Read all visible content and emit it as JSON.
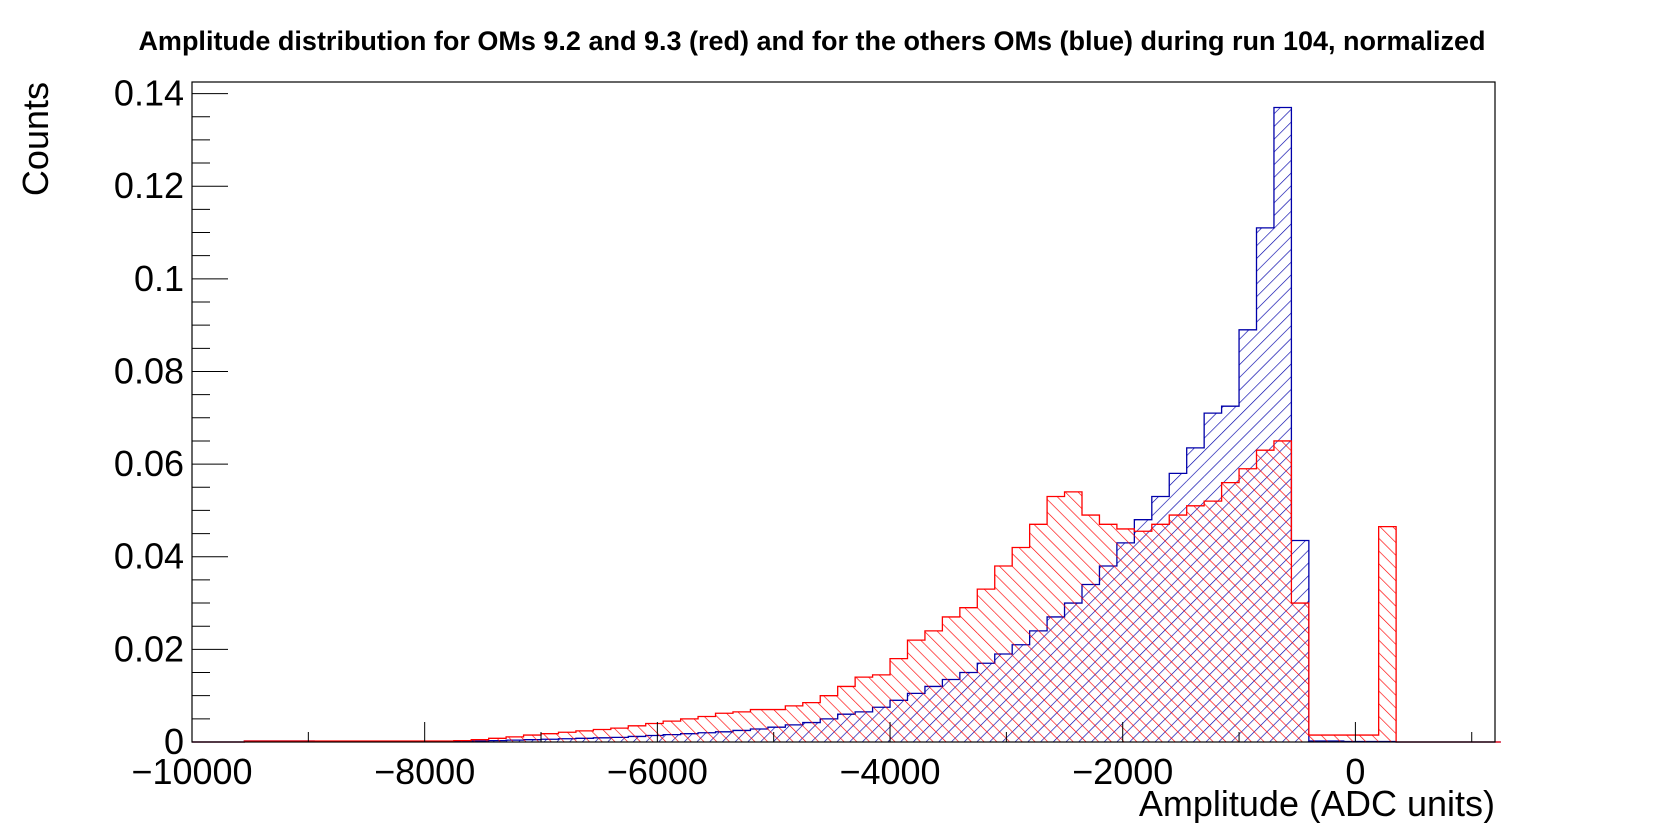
{
  "chart_data": {
    "type": "histogram",
    "title": "Amplitude distribution for OMs 9.2 and 9.3 (red) and for the others OMs (blue) during run 104, normalized",
    "xlabel": "Amplitude (ADC units)",
    "ylabel": "Counts",
    "xlim": [
      -10000,
      1200
    ],
    "ylim": [
      0,
      0.1425
    ],
    "bin_width": 150,
    "bin_start": -10000,
    "x_ticks": [
      -10000,
      -8000,
      -6000,
      -4000,
      -2000,
      0
    ],
    "x_tick_labels": [
      "−10000",
      "−8000",
      "−6000",
      "−4000",
      "−2000",
      "0"
    ],
    "y_ticks": [
      0,
      0.02,
      0.04,
      0.06,
      0.08,
      0.1,
      0.12,
      0.14
    ],
    "y_tick_labels": [
      "0",
      "0.02",
      "0.04",
      "0.06",
      "0.08",
      "0.1",
      "0.12",
      "0.14"
    ],
    "grid": false,
    "series": [
      {
        "color": "#0000aa",
        "values": [
          0,
          0,
          0,
          0.0002,
          0.0002,
          0.0002,
          0.0002,
          0.0001,
          0.0001,
          0.0001,
          0.0001,
          0.0001,
          0.0001,
          0.0001,
          0.0001,
          0.0001,
          0.0002,
          0.0003,
          0.0004,
          0.0005,
          0.0006,
          0.0007,
          0.0008,
          0.0009,
          0.001,
          0.0012,
          0.0014,
          0.0016,
          0.0018,
          0.002,
          0.0022,
          0.0025,
          0.0028,
          0.0032,
          0.0037,
          0.0042,
          0.005,
          0.006,
          0.0065,
          0.0075,
          0.009,
          0.0105,
          0.012,
          0.0135,
          0.015,
          0.017,
          0.019,
          0.021,
          0.024,
          0.027,
          0.03,
          0.034,
          0.038,
          0.043,
          0.048,
          0.053,
          0.058,
          0.0635,
          0.071,
          0.0725,
          0.089,
          0.111,
          0.137,
          0.0435,
          0.0002,
          0.0002,
          0.0001,
          0.0001,
          0.0001,
          0,
          0,
          0,
          0,
          0,
          0
        ]
      },
      {
        "color": "#ff0000",
        "values": [
          0,
          0,
          0,
          0.0002,
          0.0002,
          0.0002,
          0.0002,
          0.0002,
          0.0002,
          0.0002,
          0.0002,
          0.0002,
          0.0002,
          0.0002,
          0.0002,
          0.0003,
          0.0005,
          0.0008,
          0.0011,
          0.0015,
          0.0018,
          0.0021,
          0.0024,
          0.0027,
          0.003,
          0.0035,
          0.004,
          0.0045,
          0.005,
          0.0055,
          0.0062,
          0.0065,
          0.007,
          0.007,
          0.0078,
          0.0085,
          0.01,
          0.012,
          0.014,
          0.0145,
          0.018,
          0.022,
          0.024,
          0.027,
          0.029,
          0.033,
          0.038,
          0.042,
          0.047,
          0.053,
          0.054,
          0.049,
          0.047,
          0.046,
          0.0455,
          0.047,
          0.049,
          0.051,
          0.052,
          0.056,
          0.059,
          0.063,
          0.065,
          0.03,
          0.0015,
          0.0015,
          0.0015,
          0.0015,
          0.0465,
          0,
          0,
          0,
          0,
          0,
          0
        ]
      }
    ]
  }
}
